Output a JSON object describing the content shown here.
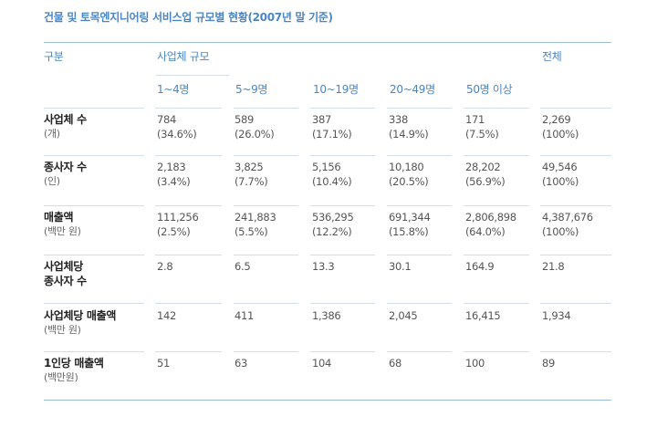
{
  "title": "건물 및 토목엔지니어링 서비스업 규모별 현황(2007년 말 기준)",
  "header": {
    "category": "구분",
    "size_group": "사업체 규모",
    "total": "전체",
    "columns": [
      "1~4명",
      "5~9명",
      "10~19명",
      "20~49명",
      "50명 이상"
    ]
  },
  "rows": [
    {
      "label": "사업체 수",
      "unit": "(개)",
      "cells": [
        {
          "value": "784",
          "pct": "(34.6%)"
        },
        {
          "value": "589",
          "pct": "(26.0%)"
        },
        {
          "value": "387",
          "pct": "(17.1%)"
        },
        {
          "value": "338",
          "pct": "(14.9%)"
        },
        {
          "value": "171",
          "pct": "(7.5%)"
        },
        {
          "value": "2,269",
          "pct": "(100%)"
        }
      ]
    },
    {
      "label": "종사자 수",
      "unit": "(인)",
      "cells": [
        {
          "value": "2,183",
          "pct": "(3.4%)"
        },
        {
          "value": "3,825",
          "pct": "(7.7%)"
        },
        {
          "value": "5,156",
          "pct": "(10.4%)"
        },
        {
          "value": "10,180",
          "pct": "(20.5%)"
        },
        {
          "value": "28,202",
          "pct": "(56.9%)"
        },
        {
          "value": "49,546",
          "pct": "(100%)"
        }
      ]
    },
    {
      "label": "매출액",
      "unit": "(백만 원)",
      "cells": [
        {
          "value": "111,256",
          "pct": "(2.5%)"
        },
        {
          "value": "241,883",
          "pct": "(5.5%)"
        },
        {
          "value": "536,295",
          "pct": "(12.2%)"
        },
        {
          "value": "691,344",
          "pct": "(15.8%)"
        },
        {
          "value": "2,806,898",
          "pct": "(64.0%)"
        },
        {
          "value": "4,387,676",
          "pct": "(100%)"
        }
      ]
    },
    {
      "label": "사업체당",
      "label2": "종사자 수",
      "cells": [
        {
          "value": "2.8"
        },
        {
          "value": "6.5"
        },
        {
          "value": "13.3"
        },
        {
          "value": "30.1"
        },
        {
          "value": "164.9"
        },
        {
          "value": "21.8"
        }
      ]
    },
    {
      "label": "사업체당 매출액",
      "unit": "(백만 원)",
      "cells": [
        {
          "value": "142"
        },
        {
          "value": "411"
        },
        {
          "value": "1,386"
        },
        {
          "value": "2,045"
        },
        {
          "value": "16,415"
        },
        {
          "value": "1,934"
        }
      ]
    },
    {
      "label": "1인당 매출액",
      "unit": "(백만원)",
      "cells": [
        {
          "value": "51"
        },
        {
          "value": "63"
        },
        {
          "value": "104"
        },
        {
          "value": "68"
        },
        {
          "value": "100"
        },
        {
          "value": "89"
        }
      ]
    }
  ]
}
